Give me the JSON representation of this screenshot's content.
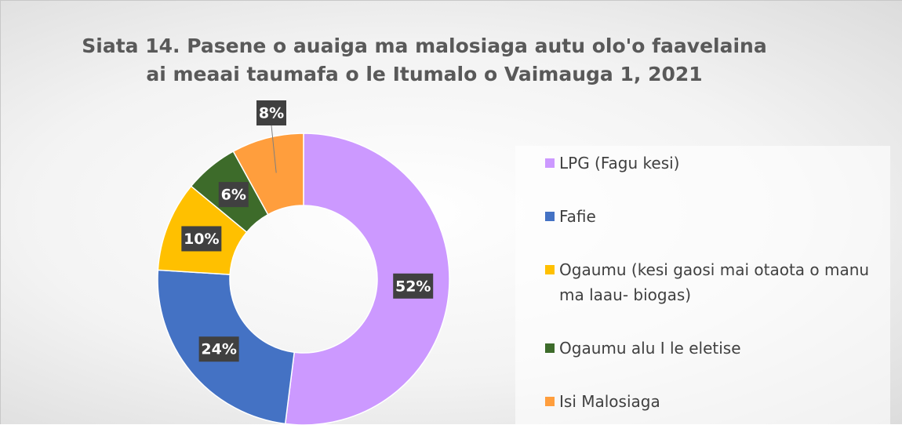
{
  "chart_data": {
    "type": "pie",
    "title": "Siata 14. Pasene o auaiga ma malosiaga autu olo'o faavelaina ai meaai taumafa o le Itumalo o Vaimauga 1, 2021",
    "categories": [
      "LPG (Fagu kesi)",
      "Fafie",
      "Ogaumu (kesi gaosi mai otaota o manu ma laau- biogas)",
      "Ogaumu alu I le eletise",
      "Isi Malosiaga"
    ],
    "values": [
      52,
      24,
      10,
      6,
      8
    ],
    "value_labels": [
      "52%",
      "24%",
      "10%",
      "6%",
      "8%"
    ],
    "colors": [
      "#cc99ff",
      "#4472c4",
      "#ffc000",
      "#3d6b2a",
      "#ff9e3d"
    ],
    "donut": true,
    "legend": "right"
  }
}
